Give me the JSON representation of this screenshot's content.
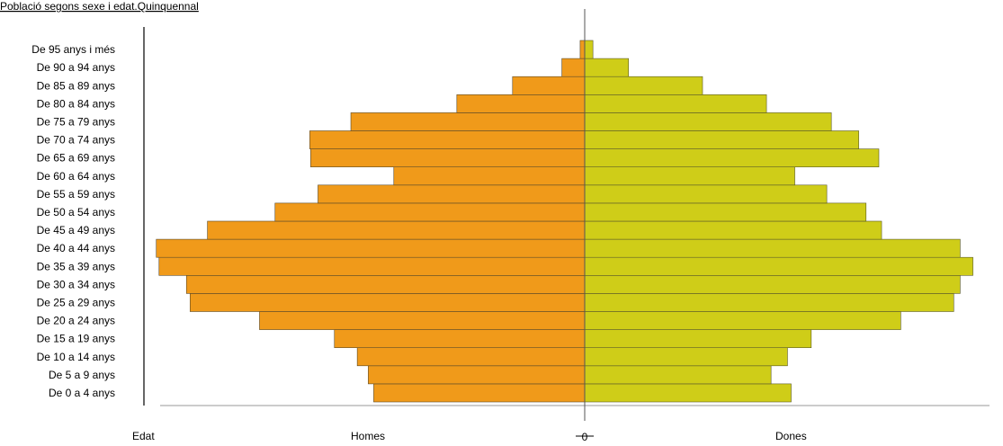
{
  "chart_data": {
    "type": "bar",
    "orientation": "horizontal",
    "layout": "population-pyramid",
    "title": "Població segons sexe i edat.Quinquennal",
    "ylabel": "Edat",
    "zero_label": "0",
    "categories": [
      "De 0 a 4 anys",
      "De 5 a 9 anys",
      "De 10 a 14 anys",
      "De 15 a 19 anys",
      "De 20 a 24 anys",
      "De 25 a 29 anys",
      "De 30 a 34 anys",
      "De 35 a 39 anys",
      "De 40 a 44 anys",
      "De 45 a 49 anys",
      "De 50 a 54 anys",
      "De 55 a 59 anys",
      "De 60 a 64 anys",
      "De 65 a 69 anys",
      "De 70 a 74 anys",
      "De 75 a 79 anys",
      "De 80 a 84 anys",
      "De 85 a 89 anys",
      "De 90 a 94 anys",
      "De 95 anys i més"
    ],
    "series": [
      {
        "name": "Homes",
        "side": "left",
        "color": "#F09A1A",
        "values": [
          231,
          237,
          249,
          274,
          356,
          432,
          436,
          466,
          469,
          413,
          339,
          292,
          209,
          300,
          301,
          256,
          140,
          79,
          25,
          5
        ]
      },
      {
        "name": "Dones",
        "side": "right",
        "color": "#CFCD18",
        "values": [
          226,
          204,
          222,
          248,
          346,
          404,
          411,
          425,
          411,
          325,
          308,
          265,
          230,
          322,
          300,
          270,
          199,
          129,
          48,
          9
        ]
      }
    ],
    "grid": false,
    "legend": "none"
  }
}
